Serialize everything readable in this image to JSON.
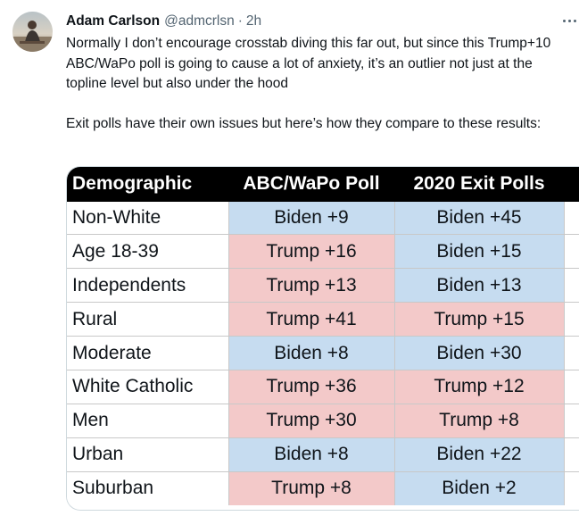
{
  "author": {
    "name": "Adam Carlson",
    "handle": "@admcrlsn",
    "separator": "·",
    "time": "2h"
  },
  "tweet": {
    "paragraphs": [
      "Normally I don’t encourage crosstab diving this far out, but since this Trump+10 ABC/WaPo poll is going to cause a lot of anxiety, it’s an outlier not just at the topline level but also under the hood",
      "Exit polls have their own issues but here’s how they compare to these results:"
    ]
  },
  "icons": {
    "more": "more-horizontal-icon",
    "avatar": "user-avatar"
  },
  "colors": {
    "biden": "#c6dcf0",
    "trump": "#f3c9c9",
    "header_bg": "#000000"
  },
  "table": {
    "headers": [
      "Demographic",
      "ABC/WaPo Poll",
      "2020 Exit Polls"
    ],
    "rows": [
      {
        "demographic": "Non-White",
        "abc_wapo": "Biden +9",
        "abc_party": "biden",
        "exit": "Biden +45",
        "exit_party": "biden"
      },
      {
        "demographic": "Age 18-39",
        "abc_wapo": "Trump +16",
        "abc_party": "trump",
        "exit": "Biden +15",
        "exit_party": "biden"
      },
      {
        "demographic": "Independents",
        "abc_wapo": "Trump +13",
        "abc_party": "trump",
        "exit": "Biden +13",
        "exit_party": "biden"
      },
      {
        "demographic": "Rural",
        "abc_wapo": "Trump +41",
        "abc_party": "trump",
        "exit": "Trump +15",
        "exit_party": "trump"
      },
      {
        "demographic": "Moderate",
        "abc_wapo": "Biden +8",
        "abc_party": "biden",
        "exit": "Biden +30",
        "exit_party": "biden"
      },
      {
        "demographic": "White Catholic",
        "abc_wapo": "Trump +36",
        "abc_party": "trump",
        "exit": "Trump +12",
        "exit_party": "trump"
      },
      {
        "demographic": "Men",
        "abc_wapo": "Trump +30",
        "abc_party": "trump",
        "exit": "Trump +8",
        "exit_party": "trump"
      },
      {
        "demographic": "Urban",
        "abc_wapo": "Biden +8",
        "abc_party": "biden",
        "exit": "Biden +22",
        "exit_party": "biden"
      },
      {
        "demographic": "Suburban",
        "abc_wapo": "Trump +8",
        "abc_party": "trump",
        "exit": "Biden +2",
        "exit_party": "biden"
      }
    ]
  }
}
